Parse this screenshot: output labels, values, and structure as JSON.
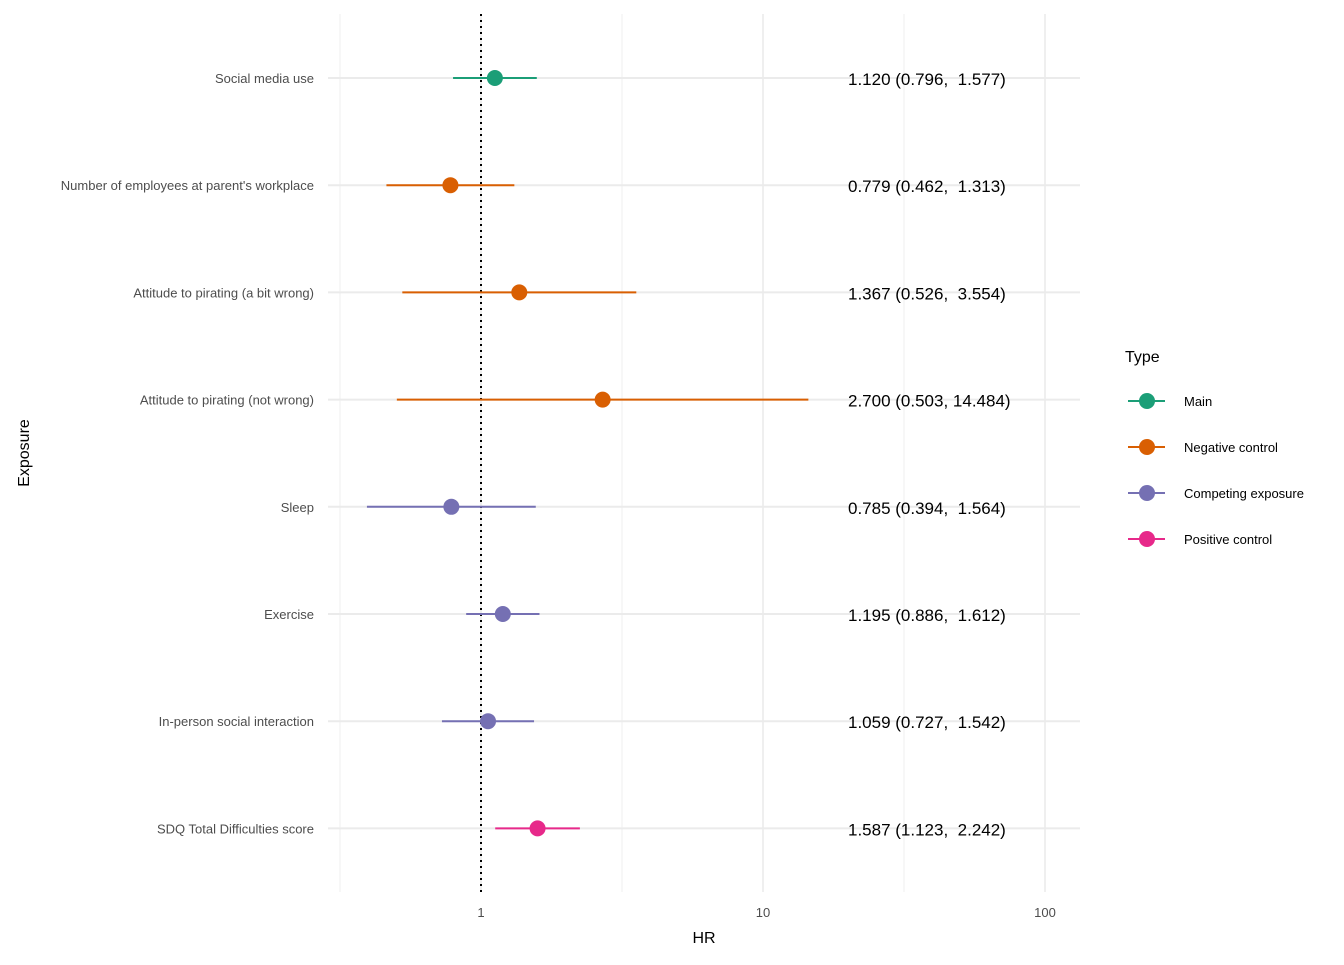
{
  "chart_data": {
    "type": "forest",
    "title": "",
    "xlabel": "HR",
    "ylabel": "Exposure",
    "x_scale": "log10",
    "xlim": [
      0.3,
      140
    ],
    "x_ticks": [
      1,
      10,
      100
    ],
    "x_tick_labels": [
      "1",
      "10",
      "100"
    ],
    "reference_line": 1,
    "grid": true,
    "legend": {
      "title": "Type",
      "placement": "right",
      "entries": [
        {
          "name": "Main",
          "color": "#1b9e77"
        },
        {
          "name": "Negative control",
          "color": "#d95f02"
        },
        {
          "name": "Competing exposure",
          "color": "#7570b3"
        },
        {
          "name": "Positive control",
          "color": "#e7298a"
        }
      ]
    },
    "rows": [
      {
        "label": "Social media use",
        "hr": 1.12,
        "lower": 0.796,
        "upper": 1.577,
        "type": "Main",
        "hr_text": "1.120",
        "ci_text": "(0.796,  1.577)"
      },
      {
        "label": "Number of employees at parent's workplace",
        "hr": 0.779,
        "lower": 0.462,
        "upper": 1.313,
        "type": "Negative control",
        "hr_text": "0.779",
        "ci_text": "(0.462,  1.313)"
      },
      {
        "label": "Attitude to pirating (a bit wrong)",
        "hr": 1.367,
        "lower": 0.526,
        "upper": 3.554,
        "type": "Negative control",
        "hr_text": "1.367",
        "ci_text": "(0.526,  3.554)"
      },
      {
        "label": "Attitude to pirating (not wrong)",
        "hr": 2.7,
        "lower": 0.503,
        "upper": 14.484,
        "type": "Negative control",
        "hr_text": "2.700",
        "ci_text": "(0.503, 14.484)"
      },
      {
        "label": "Sleep",
        "hr": 0.785,
        "lower": 0.394,
        "upper": 1.564,
        "type": "Competing exposure",
        "hr_text": "0.785",
        "ci_text": "(0.394,  1.564)"
      },
      {
        "label": "Exercise",
        "hr": 1.195,
        "lower": 0.886,
        "upper": 1.612,
        "type": "Competing exposure",
        "hr_text": "1.195",
        "ci_text": "(0.886,  1.612)"
      },
      {
        "label": "In-person social interaction",
        "hr": 1.059,
        "lower": 0.727,
        "upper": 1.542,
        "type": "Competing exposure",
        "hr_text": "1.059",
        "ci_text": "(0.727,  1.542)"
      },
      {
        "label": "SDQ Total Difficulties score",
        "hr": 1.587,
        "lower": 1.123,
        "upper": 2.242,
        "type": "Positive control",
        "hr_text": "1.587",
        "ci_text": "(1.123,  2.242)"
      }
    ]
  }
}
